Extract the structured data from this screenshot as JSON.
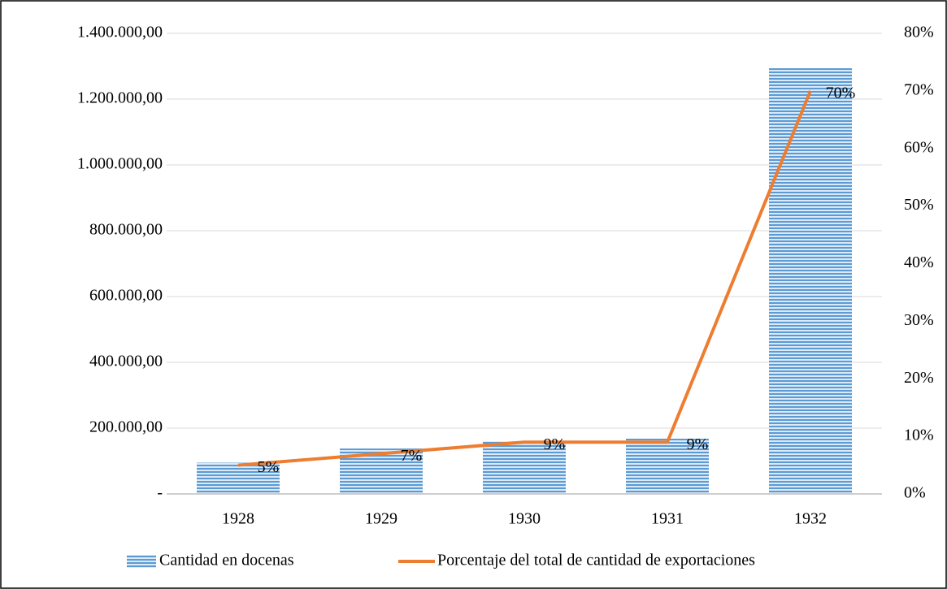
{
  "chart_data": {
    "type": "combo",
    "categories": [
      "1928",
      "1929",
      "1930",
      "1931",
      "1932"
    ],
    "series": [
      {
        "name": "Cantidad en docenas",
        "type": "bar",
        "color": "#5b9bd5",
        "values": [
          95000,
          138000,
          160000,
          168000,
          1294000
        ]
      },
      {
        "name": "Porcentaje del total de cantidad de exportaciones",
        "type": "line",
        "axis": "y2",
        "color": "#ed7d31",
        "values": [
          5,
          7,
          9,
          9,
          70
        ],
        "value_labels": [
          "5%",
          "7%",
          "9%",
          "9%",
          "70%"
        ]
      }
    ],
    "ylim": [
      0,
      1400000
    ],
    "yticks": [
      {
        "value": 0,
        "label": "-"
      },
      {
        "value": 200000,
        "label": "200.000,00"
      },
      {
        "value": 400000,
        "label": "400.000,00"
      },
      {
        "value": 600000,
        "label": "600.000,00"
      },
      {
        "value": 800000,
        "label": "800.000,00"
      },
      {
        "value": 1000000,
        "label": "1.000.000,00"
      },
      {
        "value": 1200000,
        "label": "1.200.000,00"
      },
      {
        "value": 1400000,
        "label": "1.400.000,00"
      }
    ],
    "y2lim": [
      0,
      80
    ],
    "y2ticks": [
      {
        "value": 0,
        "label": "0%"
      },
      {
        "value": 10,
        "label": "10%"
      },
      {
        "value": 20,
        "label": "20%"
      },
      {
        "value": 30,
        "label": "30%"
      },
      {
        "value": 40,
        "label": "40%"
      },
      {
        "value": 50,
        "label": "50%"
      },
      {
        "value": 60,
        "label": "60%"
      },
      {
        "value": 70,
        "label": "70%"
      },
      {
        "value": 80,
        "label": "80%"
      }
    ],
    "grid": true,
    "legend": "bottom"
  }
}
